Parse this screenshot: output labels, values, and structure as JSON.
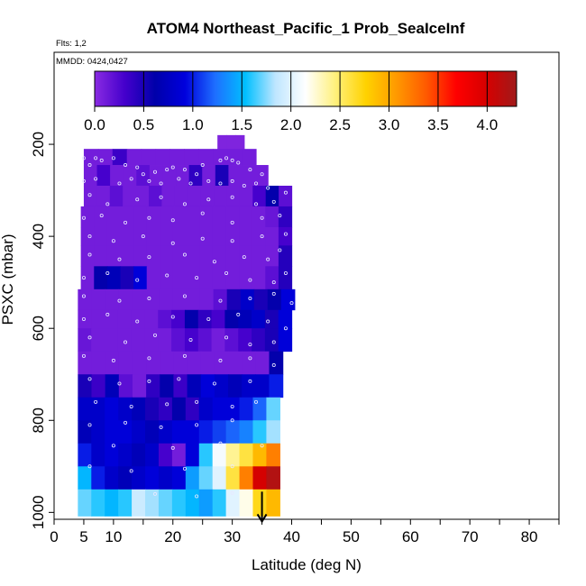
{
  "chart_data": {
    "type": "heatmap",
    "title": "ATOM4 Northeast_Pacific_1 Prob_SeaIceInf",
    "notes": [
      "Flts: 1,2",
      "MMDD: 0424,0427"
    ],
    "xlabel": "Latitude (deg N)",
    "ylabel": "PSXC (mbar)",
    "x_ticks": [
      0,
      5,
      10,
      20,
      30,
      40,
      50,
      60,
      70,
      80
    ],
    "y_ticks": [
      200,
      400,
      600,
      800,
      1000
    ],
    "xlim": [
      0,
      85
    ],
    "ylim": [
      1015,
      0
    ],
    "colorbar": {
      "ticks": [
        0.0,
        0.5,
        1.0,
        1.5,
        2.0,
        2.5,
        3.0,
        3.5,
        4.0
      ],
      "tick_labels": [
        "0.0",
        "0.5",
        "1.0",
        "1.5",
        "2.0",
        "2.5",
        "3.0",
        "3.5",
        "4.0"
      ],
      "range": [
        0,
        4.3
      ],
      "colors": [
        "#8a2be2",
        "#4400cc",
        "#0000aa",
        "#0000dd",
        "#1e6fff",
        "#00bfff",
        "#bfe6ff",
        "#ffffff",
        "#fff07a",
        "#ffd200",
        "#ff9a00",
        "#ff5a00",
        "#ff0000",
        "#d60000",
        "#a01a1a"
      ]
    },
    "rows": [
      {
        "p_top": 180,
        "p_bot": 210,
        "x0": 27.5,
        "x1": 32,
        "values": [
          0.05,
          0.05,
          0.05
        ]
      },
      {
        "p_top": 210,
        "p_bot": 245,
        "x0": 5,
        "x1": 34,
        "values": [
          0.1,
          0.1,
          0.35,
          0.1,
          0.1,
          0.1,
          0.1,
          0.1,
          0.1,
          0.1,
          0.1,
          0.1
        ]
      },
      {
        "p_top": 245,
        "p_bot": 290,
        "x0": 5,
        "x1": 36,
        "values": [
          0.1,
          0.3,
          0.1,
          0.1,
          0.2,
          0.1,
          0.1,
          0.1,
          0.4,
          0.1,
          0.5,
          0.1,
          0.1,
          0.1
        ]
      },
      {
        "p_top": 290,
        "p_bot": 335,
        "x0": 5,
        "x1": 40,
        "values": [
          0.1,
          0.1,
          0.2,
          0.1,
          0.1,
          0.2,
          0.1,
          0.1,
          0.1,
          0.1,
          0.1,
          0.1,
          0.1,
          0.3,
          0.6,
          0.2
        ]
      },
      {
        "p_top": 335,
        "p_bot": 380,
        "x0": 4.5,
        "x1": 40,
        "values": [
          0.1,
          0.1,
          0.1,
          0.1,
          0.1,
          0.1,
          0.1,
          0.1,
          0.1,
          0.1,
          0.1,
          0.1,
          0.1,
          0.1,
          0.15,
          0.4
        ]
      },
      {
        "p_top": 380,
        "p_bot": 420,
        "x0": 4.5,
        "x1": 40,
        "values": [
          0.1,
          0.1,
          0.1,
          0.1,
          0.1,
          0.1,
          0.1,
          0.1,
          0.1,
          0.1,
          0.1,
          0.1,
          0.1,
          0.1,
          0.1,
          0.3
        ]
      },
      {
        "p_top": 420,
        "p_bot": 465,
        "x0": 4.5,
        "x1": 40,
        "values": [
          0.1,
          0.1,
          0.1,
          0.1,
          0.1,
          0.1,
          0.1,
          0.1,
          0.1,
          0.1,
          0.1,
          0.1,
          0.1,
          0.1,
          0.1,
          0.45
        ]
      },
      {
        "p_top": 465,
        "p_bot": 515,
        "x0": 4.5,
        "x1": 40,
        "values": [
          0.1,
          0.6,
          0.7,
          0.5,
          0.9,
          0.1,
          0.1,
          0.1,
          0.1,
          0.1,
          0.1,
          0.1,
          0.1,
          0.1,
          0.2,
          0.45
        ]
      },
      {
        "p_top": 515,
        "p_bot": 560,
        "x0": 4,
        "x1": 40.5,
        "values": [
          0.1,
          0.1,
          0.1,
          0.1,
          0.1,
          0.1,
          0.1,
          0.1,
          0.1,
          0.1,
          0.2,
          0.5,
          0.8,
          0.5,
          0.6,
          0.9
        ]
      },
      {
        "p_top": 560,
        "p_bot": 600,
        "x0": 4,
        "x1": 40,
        "values": [
          0.1,
          0.1,
          0.1,
          0.1,
          0.1,
          0.1,
          0.2,
          0.3,
          0.6,
          0.4,
          0.3,
          0.6,
          0.7,
          0.8,
          0.5,
          0.9
        ]
      },
      {
        "p_top": 600,
        "p_bot": 650,
        "x0": 4,
        "x1": 40,
        "values": [
          0.15,
          0.1,
          0.1,
          0.1,
          0.1,
          0.1,
          0.1,
          0.2,
          0.3,
          0.2,
          0.1,
          0.2,
          0.3,
          0.4,
          0.5,
          0.9
        ]
      },
      {
        "p_top": 650,
        "p_bot": 700,
        "x0": 4,
        "x1": 38.5,
        "values": [
          0.1,
          0.1,
          0.1,
          0.1,
          0.1,
          0.1,
          0.1,
          0.1,
          0.1,
          0.1,
          0.1,
          0.1,
          0.1,
          0.1,
          0.6
        ]
      },
      {
        "p_top": 700,
        "p_bot": 750,
        "x0": 4,
        "x1": 38.5,
        "values": [
          0.5,
          0.35,
          0.7,
          0.2,
          0.1,
          0.4,
          0.6,
          0.35,
          0.7,
          0.9,
          0.8,
          0.7,
          0.8,
          0.8,
          1.0
        ]
      },
      {
        "p_top": 750,
        "p_bot": 800,
        "x0": 4,
        "x1": 38,
        "values": [
          0.8,
          0.8,
          0.9,
          0.8,
          0.7,
          0.5,
          0.4,
          0.6,
          0.4,
          0.8,
          0.9,
          0.9,
          1.0,
          1.2,
          1.7
        ]
      },
      {
        "p_top": 800,
        "p_bot": 850,
        "x0": 4,
        "x1": 38,
        "values": [
          0.7,
          0.8,
          0.9,
          0.9,
          0.8,
          0.7,
          0.8,
          0.9,
          0.9,
          1.0,
          1.1,
          1.2,
          1.3,
          1.6,
          1.8
        ]
      },
      {
        "p_top": 850,
        "p_bot": 900,
        "x0": 4,
        "x1": 38,
        "values": [
          1.0,
          0.8,
          0.9,
          0.8,
          0.7,
          0.8,
          0.3,
          0.1,
          0.9,
          1.6,
          2.1,
          2.4,
          2.6,
          2.9,
          3.2
        ]
      },
      {
        "p_top": 900,
        "p_bot": 950,
        "x0": 4,
        "x1": 38,
        "values": [
          1.5,
          1.0,
          0.8,
          0.7,
          0.8,
          0.9,
          0.8,
          0.9,
          1.4,
          1.7,
          2.0,
          2.6,
          3.2,
          4.0,
          4.2
        ]
      },
      {
        "p_top": 950,
        "p_bot": 1008,
        "x0": 4,
        "x1": 38,
        "values": [
          1.7,
          1.6,
          1.5,
          1.6,
          1.9,
          1.8,
          1.7,
          1.6,
          1.5,
          1.4,
          1.6,
          2.0,
          2.2,
          2.7,
          2.9
        ]
      }
    ],
    "points": [
      [
        5,
        230
      ],
      [
        6,
        245
      ],
      [
        7,
        230
      ],
      [
        8,
        235
      ],
      [
        10,
        230
      ],
      [
        12,
        245
      ],
      [
        14,
        250
      ],
      [
        15,
        265
      ],
      [
        17,
        260
      ],
      [
        19,
        255
      ],
      [
        20,
        250
      ],
      [
        22,
        255
      ],
      [
        24,
        265
      ],
      [
        25,
        245
      ],
      [
        28,
        235
      ],
      [
        29,
        230
      ],
      [
        30,
        235
      ],
      [
        31,
        240
      ],
      [
        33,
        255
      ],
      [
        35,
        265
      ],
      [
        5,
        280
      ],
      [
        7,
        275
      ],
      [
        11,
        285
      ],
      [
        13,
        275
      ],
      [
        16,
        280
      ],
      [
        18,
        285
      ],
      [
        21,
        275
      ],
      [
        23,
        285
      ],
      [
        26,
        280
      ],
      [
        28,
        285
      ],
      [
        30,
        280
      ],
      [
        32,
        290
      ],
      [
        34,
        285
      ],
      [
        36,
        295
      ],
      [
        6,
        310
      ],
      [
        9,
        330
      ],
      [
        14,
        320
      ],
      [
        18,
        315
      ],
      [
        22,
        330
      ],
      [
        26,
        320
      ],
      [
        30,
        315
      ],
      [
        34,
        330
      ],
      [
        37,
        325
      ],
      [
        39,
        305
      ],
      [
        5,
        360
      ],
      [
        8,
        355
      ],
      [
        12,
        370
      ],
      [
        16,
        360
      ],
      [
        20,
        365
      ],
      [
        25,
        350
      ],
      [
        30,
        370
      ],
      [
        35,
        360
      ],
      [
        38,
        355
      ],
      [
        39,
        395
      ],
      [
        6,
        400
      ],
      [
        10,
        410
      ],
      [
        15,
        400
      ],
      [
        20,
        415
      ],
      [
        25,
        405
      ],
      [
        30,
        410
      ],
      [
        35,
        400
      ],
      [
        38,
        430
      ],
      [
        6,
        440
      ],
      [
        11,
        450
      ],
      [
        16,
        445
      ],
      [
        22,
        440
      ],
      [
        27,
        455
      ],
      [
        32,
        445
      ],
      [
        36,
        450
      ],
      [
        5,
        490
      ],
      [
        9,
        480
      ],
      [
        14,
        495
      ],
      [
        19,
        485
      ],
      [
        24,
        490
      ],
      [
        29,
        480
      ],
      [
        33,
        495
      ],
      [
        37,
        500
      ],
      [
        39,
        480
      ],
      [
        5,
        530
      ],
      [
        11,
        540
      ],
      [
        16,
        535
      ],
      [
        22,
        530
      ],
      [
        28,
        540
      ],
      [
        33,
        535
      ],
      [
        37,
        525
      ],
      [
        40,
        545
      ],
      [
        5,
        580
      ],
      [
        9,
        570
      ],
      [
        14,
        585
      ],
      [
        20,
        575
      ],
      [
        26,
        580
      ],
      [
        31,
        570
      ],
      [
        36,
        585
      ],
      [
        39,
        600
      ],
      [
        6,
        620
      ],
      [
        12,
        630
      ],
      [
        17,
        615
      ],
      [
        23,
        625
      ],
      [
        29,
        620
      ],
      [
        33,
        635
      ],
      [
        37,
        630
      ],
      [
        5,
        660
      ],
      [
        10,
        670
      ],
      [
        16,
        665
      ],
      [
        22,
        660
      ],
      [
        28,
        670
      ],
      [
        33,
        665
      ],
      [
        37,
        680
      ],
      [
        6,
        710
      ],
      [
        11,
        720
      ],
      [
        16,
        715
      ],
      [
        21,
        710
      ],
      [
        27,
        720
      ],
      [
        33,
        715
      ],
      [
        7,
        760
      ],
      [
        13,
        770
      ],
      [
        19,
        765
      ],
      [
        24,
        760
      ],
      [
        30,
        770
      ],
      [
        34,
        760
      ],
      [
        6,
        810
      ],
      [
        12,
        805
      ],
      [
        18,
        815
      ],
      [
        24,
        810
      ],
      [
        30,
        800
      ],
      [
        10,
        855
      ],
      [
        20,
        860
      ],
      [
        28,
        850
      ],
      [
        35,
        855
      ],
      [
        6,
        900
      ],
      [
        13,
        910
      ],
      [
        22,
        905
      ],
      [
        30,
        900
      ],
      [
        17,
        960
      ],
      [
        24,
        965
      ],
      [
        30,
        958
      ]
    ],
    "arrow": {
      "x": 35,
      "p_from": 955,
      "p_to": 1008
    }
  }
}
